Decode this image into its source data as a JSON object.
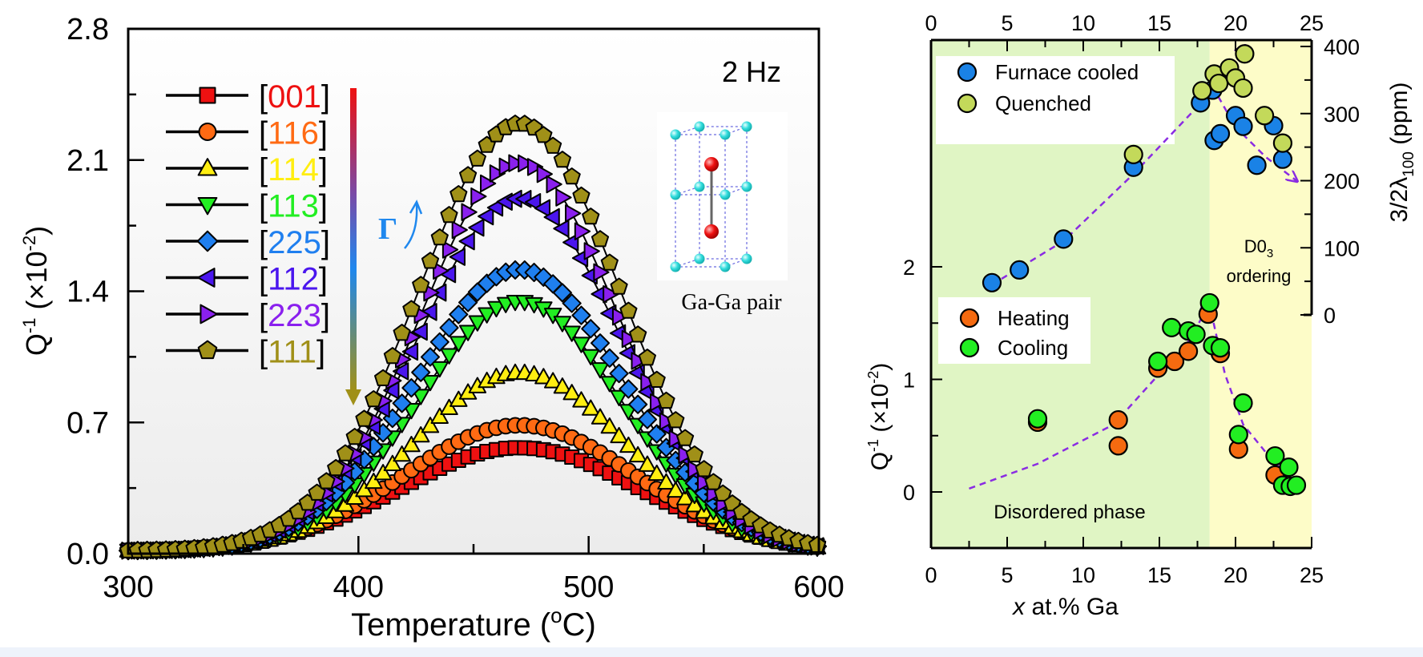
{
  "chart_data": [
    {
      "type": "line",
      "title": "2 Hz",
      "xlabel": "Temperature (°C)",
      "ylabel": "Q⁻¹ (×10⁻²)",
      "xlim": [
        300,
        600
      ],
      "ylim": [
        0,
        2.8
      ],
      "xticks": [
        "300",
        "400",
        "500",
        "600"
      ],
      "yticks": [
        "0.0",
        "0.7",
        "1.4",
        "2.1",
        "2.8"
      ],
      "grid": false,
      "legend_position": "top-left",
      "peak_temperature": 470,
      "series": [
        {
          "name": "[001]",
          "marker": "square",
          "color": "#ee1111",
          "peak": 0.55,
          "width": 52
        },
        {
          "name": "[116]",
          "marker": "circle",
          "color": "#ff6a13",
          "peak": 0.67,
          "width": 50
        },
        {
          "name": "[114]",
          "marker": "triangle-up",
          "color": "#ffee11",
          "peak": 0.95,
          "width": 46
        },
        {
          "name": "[113]",
          "marker": "triangle-down",
          "color": "#22ee22",
          "peak": 1.33,
          "width": 44
        },
        {
          "name": "[225]",
          "marker": "diamond",
          "color": "#1f7fef",
          "peak": 1.5,
          "width": 45
        },
        {
          "name": "[112]",
          "marker": "triangle-left",
          "color": "#4a16ee",
          "peak": 1.88,
          "width": 44
        },
        {
          "name": "[223]",
          "marker": "triangle-right",
          "color": "#8a20ee",
          "peak": 2.07,
          "width": 43
        },
        {
          "name": "[111]",
          "marker": "pentagon",
          "color": "#a09018",
          "peak": 2.28,
          "width": 44
        }
      ],
      "annotations": {
        "gamma_label": "Γ",
        "gamma_arrow": "↗",
        "inset_caption": "Ga-Ga pair",
        "colorbar_direction": "down"
      }
    },
    {
      "type": "scatter",
      "xlabel": "x at.% Ga",
      "xlabel_italic": "x",
      "xlabel_rest": " at.% Ga",
      "ylabel_left": "Q⁻¹ (×10⁻²)",
      "ylabel_right": "3/2λ100 (ppm)",
      "xlim": [
        0,
        25
      ],
      "ylim_left": [
        -0.5,
        3.1
      ],
      "ylim_right": [
        0,
        400
      ],
      "xticks": [
        "0",
        "5",
        "10",
        "15",
        "20",
        "25"
      ],
      "yticks_left": [
        "0",
        "1",
        "2"
      ],
      "yticks_right": [
        "0",
        "100",
        "200",
        "300",
        "400"
      ],
      "regions": [
        {
          "label": "Disordered phase",
          "x_range": [
            0,
            18.3
          ],
          "color": "#e0f5c4"
        },
        {
          "label": "D0₃ ordering",
          "x_range": [
            18.3,
            25
          ],
          "color": "#fdfcc8"
        }
      ],
      "legend_top": [
        "Furnace cooled",
        "Quenched"
      ],
      "legend_bottom": [
        "Heating",
        "Cooling"
      ],
      "series": [
        {
          "name": "Furnace cooled",
          "axis": "right",
          "color": "#1a82e6",
          "points": [
            [
              4.0,
              48
            ],
            [
              5.8,
              67
            ],
            [
              8.7,
              113
            ],
            [
              13.3,
              220
            ],
            [
              17.7,
              316
            ],
            [
              18.5,
              335
            ],
            [
              18.6,
              260
            ],
            [
              19.0,
              270
            ],
            [
              20.0,
              297
            ],
            [
              20.5,
              281
            ],
            [
              21.4,
              223
            ],
            [
              22.5,
              282
            ],
            [
              23.1,
              232
            ]
          ]
        },
        {
          "name": "Quenched",
          "axis": "right",
          "color": "#c3d95a",
          "points": [
            [
              13.3,
              239
            ],
            [
              17.8,
              334
            ],
            [
              18.6,
              359
            ],
            [
              18.9,
              345
            ],
            [
              19.6,
              368
            ],
            [
              20.0,
              353
            ],
            [
              20.5,
              338
            ],
            [
              20.6,
              389
            ],
            [
              21.9,
              297
            ],
            [
              23.1,
              256
            ]
          ]
        },
        {
          "name": "Heating",
          "axis": "left",
          "color": "#f56a10",
          "points": [
            [
              7.0,
              0.62
            ],
            [
              12.3,
              0.64
            ],
            [
              12.3,
              0.41
            ],
            [
              14.9,
              1.1
            ],
            [
              16.0,
              1.16
            ],
            [
              16.9,
              1.25
            ],
            [
              18.2,
              1.58
            ],
            [
              19.0,
              1.23
            ],
            [
              20.2,
              0.38
            ],
            [
              22.6,
              0.15
            ]
          ]
        },
        {
          "name": "Cooling",
          "axis": "left",
          "color": "#22ee22",
          "points": [
            [
              7.0,
              0.65
            ],
            [
              14.9,
              1.16
            ],
            [
              15.8,
              1.46
            ],
            [
              16.9,
              1.43
            ],
            [
              17.4,
              1.4
            ],
            [
              18.3,
              1.68
            ],
            [
              18.5,
              1.3
            ],
            [
              19.0,
              1.28
            ],
            [
              20.2,
              0.51
            ],
            [
              20.5,
              0.79
            ],
            [
              22.6,
              0.32
            ],
            [
              23.1,
              0.06
            ],
            [
              23.5,
              0.22
            ],
            [
              23.6,
              0.05
            ],
            [
              24.0,
              0.06
            ]
          ]
        }
      ],
      "trend_lines": [
        {
          "axis": "right",
          "points": [
            [
              4.0,
              45
            ],
            [
              8.7,
              110
            ],
            [
              13.3,
              210
            ],
            [
              17.7,
              315
            ],
            [
              20.6,
              400
            ]
          ],
          "arrow": true
        },
        {
          "axis": "right",
          "points": [
            [
              18.5,
              340
            ],
            [
              20.0,
              280
            ],
            [
              22.0,
              235
            ],
            [
              24.0,
              200
            ]
          ],
          "arrow": true
        },
        {
          "axis": "left",
          "points": [
            [
              2.5,
              0.03
            ],
            [
              7.0,
              0.25
            ],
            [
              12.0,
              0.6
            ],
            [
              15.0,
              1.05
            ],
            [
              17.0,
              1.35
            ],
            [
              18.3,
              1.68
            ]
          ],
          "arrow": true
        },
        {
          "axis": "left",
          "points": [
            [
              18.4,
              1.6
            ],
            [
              19.3,
              1.05
            ],
            [
              20.5,
              0.6
            ],
            [
              22.3,
              0.3
            ],
            [
              24.2,
              0.03
            ]
          ],
          "arrow": true
        }
      ]
    }
  ]
}
